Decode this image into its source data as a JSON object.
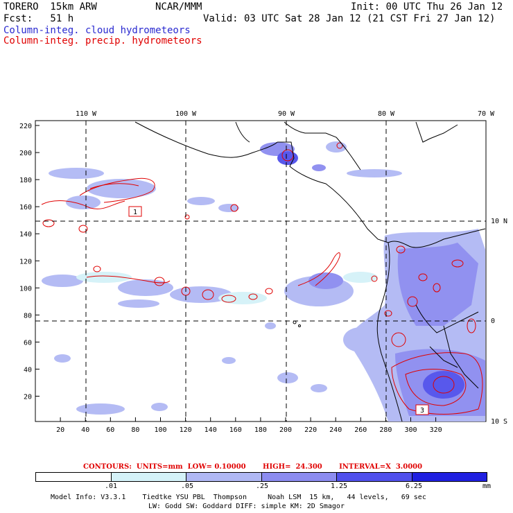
{
  "header": {
    "model_name": "TORERO  15km ARW",
    "institution": "NCAR/MMM",
    "init": "Init: 00 UTC Thu 26 Jan 12",
    "fcst": "Fcst:   51 h",
    "valid": "Valid: 03 UTC Sat 28 Jan 12 (21 CST Fri 27 Jan 12)",
    "field1": "Column-integ. cloud hydrometeors",
    "field2": "Column-integ. precip. hydrometeors"
  },
  "colors": {
    "field1": "#2a2ad0",
    "field2": "#e00000",
    "grid_lines": "#000000",
    "coastline": "#000000"
  },
  "map": {
    "lon_labels": [
      "110 W",
      "100 W",
      "90 W",
      "80 W",
      "70 W"
    ],
    "lat_labels": [
      "10 N",
      "0",
      "10 S"
    ],
    "x_ticks": [
      "20",
      "40",
      "60",
      "80",
      "100",
      "120",
      "140",
      "160",
      "180",
      "200",
      "220",
      "240",
      "260",
      "280",
      "300",
      "320"
    ],
    "y_ticks": [
      "220",
      "200",
      "180",
      "160",
      "140",
      "120",
      "100",
      "80",
      "60",
      "40",
      "20"
    ],
    "box_labels": [
      "1",
      "3"
    ]
  },
  "contours_line": "CONTOURS:  UNITS=mm  LOW= 0.10000       HIGH=  24.300       INTERVAL=X  3.0000",
  "colorbar": {
    "labels": [
      ".01",
      ".05",
      ".25",
      "1.25",
      "6.25"
    ],
    "unit": "mm",
    "colors": [
      "#ffffff",
      "#d4f2f8",
      "#b0b8f4",
      "#8c8cf0",
      "#5050ec",
      "#2020e0"
    ]
  },
  "footer": {
    "line1": "Model Info: V3.3.1    Tiedtke YSU PBL  Thompson     Noah LSM  15 km,   44 levels,   69 sec",
    "line2": "LW: Godd SW: Goddard DIFF: simple KM: 2D Smagor"
  }
}
